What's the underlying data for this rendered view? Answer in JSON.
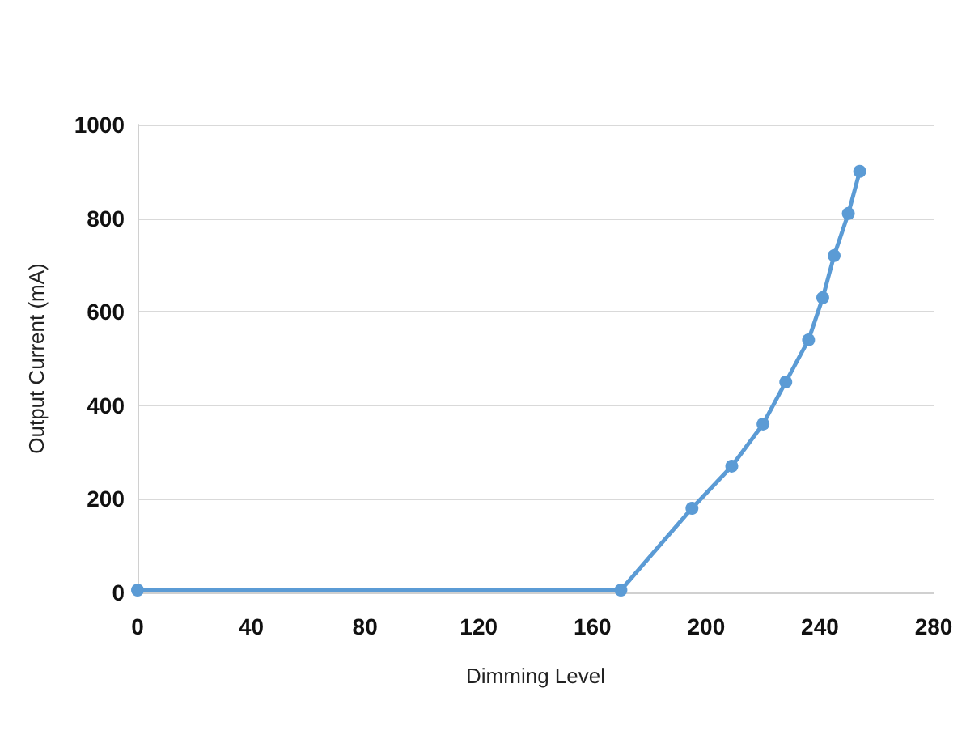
{
  "chart_data": {
    "type": "line",
    "xlabel": "Dimming Level",
    "ylabel": "Output Current (mA)",
    "x": [
      0,
      170,
      195,
      209,
      220,
      228,
      236,
      241,
      245,
      250,
      254
    ],
    "series": [
      {
        "color": "#5b9bd5",
        "values": [
          5,
          5,
          180,
          270,
          360,
          450,
          540,
          630,
          720,
          810,
          900
        ]
      }
    ],
    "xlim": [
      0,
      280
    ],
    "xticks": [
      0,
      40,
      80,
      120,
      160,
      200,
      240,
      280
    ],
    "ylim": [
      0,
      1000
    ],
    "yticks": [
      0,
      200,
      400,
      600,
      800,
      1000
    ],
    "grid": "y",
    "marker": "circle",
    "line_style": "solid"
  }
}
